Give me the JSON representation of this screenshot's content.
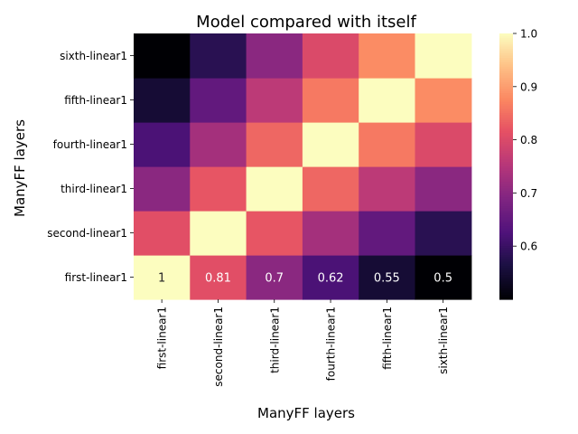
{
  "chart_data": {
    "type": "heatmap",
    "title": "Model compared with itself",
    "xlabel": "ManyFF layers",
    "ylabel": "ManyFF layers",
    "x_categories": [
      "first-linear1",
      "second-linear1",
      "third-linear1",
      "fourth-linear1",
      "fifth-linear1",
      "sixth-linear1"
    ],
    "y_categories": [
      "first-linear1",
      "second-linear1",
      "third-linear1",
      "fourth-linear1",
      "fifth-linear1",
      "sixth-linear1"
    ],
    "values": [
      [
        1.0,
        0.81,
        0.7,
        0.62,
        0.55,
        0.5
      ],
      [
        0.81,
        1.0,
        0.82,
        0.73,
        0.65,
        0.58
      ],
      [
        0.7,
        0.82,
        1.0,
        0.84,
        0.76,
        0.7
      ],
      [
        0.62,
        0.73,
        0.84,
        1.0,
        0.86,
        0.8
      ],
      [
        0.55,
        0.65,
        0.76,
        0.86,
        1.0,
        0.88
      ],
      [
        0.5,
        0.58,
        0.7,
        0.8,
        0.88,
        1.0
      ]
    ],
    "annotations_row": "first-linear1",
    "annotations": [
      "1",
      "0.81",
      "0.7",
      "0.62",
      "0.55",
      "0.5"
    ],
    "colormap": "magma",
    "vmin": 0.5,
    "vmax": 1.0,
    "colorbar_ticks": [
      "0.6",
      "0.7",
      "0.8",
      "0.9",
      "1.0"
    ],
    "colorbar_tick_values": [
      0.6,
      0.7,
      0.8,
      0.9,
      1.0
    ]
  }
}
